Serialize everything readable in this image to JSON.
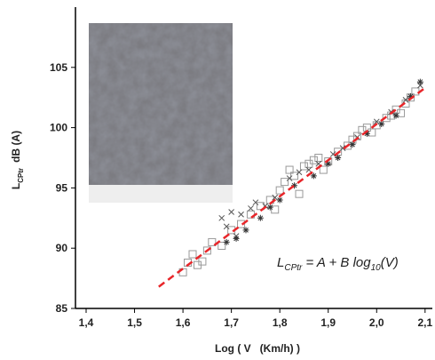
{
  "chart_data": {
    "type": "scatter",
    "x_label": "Log ( V   (Km/h) )",
    "y_label": {
      "main": "L",
      "sub": "CPtr",
      "unit": "dB (A)"
    },
    "equation": {
      "lhs": "L",
      "lhs_sub": "CPtr",
      "rhs": " = A + B log",
      "rhs_sub": "10",
      "tail": "(V)"
    },
    "xlim": [
      1.378,
      2.115
    ],
    "ylim": [
      85,
      110
    ],
    "xticks": [
      {
        "value": 1.4,
        "label": "1,4"
      },
      {
        "value": 1.5,
        "label": "1,5"
      },
      {
        "value": 1.6,
        "label": "1,6"
      },
      {
        "value": 1.7,
        "label": "1,7"
      },
      {
        "value": 1.8,
        "label": "1,8"
      },
      {
        "value": 1.9,
        "label": "1,9"
      },
      {
        "value": 2.0,
        "label": "2,0"
      },
      {
        "value": 2.1,
        "label": "2,1"
      }
    ],
    "yticks": [
      85,
      90,
      95,
      100,
      105
    ],
    "series": [
      {
        "marker": "square",
        "color": "#999999",
        "x": [
          1.6,
          1.61,
          1.62,
          1.63,
          1.65,
          1.66,
          1.68,
          1.7,
          1.72,
          1.74,
          1.76,
          1.78,
          1.8,
          1.81,
          1.82,
          1.83,
          1.85,
          1.86,
          1.87,
          1.88,
          1.9,
          1.92,
          1.94,
          1.95,
          1.96,
          1.97,
          1.98,
          2.0,
          2.02,
          2.03,
          2.04,
          2.05,
          2.06,
          2.07,
          2.08,
          1.84,
          1.79,
          1.89,
          1.99,
          1.64
        ],
        "values": [
          88.0,
          88.8,
          89.5,
          88.6,
          89.8,
          90.5,
          90.2,
          91.5,
          92.0,
          92.8,
          93.5,
          94.0,
          94.8,
          95.5,
          96.5,
          96.0,
          96.8,
          97.0,
          97.3,
          97.5,
          97.2,
          98.0,
          98.5,
          99.0,
          99.3,
          99.8,
          100.0,
          100.2,
          100.8,
          101.0,
          101.5,
          101.2,
          102.0,
          102.5,
          103.0,
          94.5,
          93.2,
          96.5,
          99.6,
          88.9
        ]
      },
      {
        "marker": "cross",
        "color": "#555555",
        "x": [
          1.68,
          1.69,
          1.7,
          1.71,
          1.72,
          1.74,
          1.75,
          1.77,
          1.79,
          1.82,
          1.84,
          1.86,
          1.88,
          1.91,
          1.93,
          1.96,
          2.0,
          2.03,
          2.06,
          2.09
        ],
        "values": [
          92.5,
          91.8,
          93.0,
          91.0,
          92.8,
          93.3,
          93.8,
          93.5,
          94.2,
          95.8,
          96.3,
          96.5,
          97.0,
          97.8,
          98.3,
          99.2,
          100.5,
          101.3,
          102.3,
          103.5
        ]
      },
      {
        "marker": "asterisk",
        "color": "#333333",
        "x": [
          1.69,
          1.71,
          1.73,
          1.76,
          1.78,
          1.8,
          1.83,
          1.87,
          1.9,
          1.92,
          1.95,
          1.98,
          2.01,
          2.04,
          2.07,
          2.09
        ],
        "values": [
          90.5,
          90.8,
          91.5,
          92.5,
          93.4,
          94.0,
          95.2,
          96.0,
          97.0,
          97.5,
          98.6,
          99.5,
          100.3,
          101.0,
          102.6,
          103.8
        ]
      },
      {
        "marker": "line",
        "color": "#e8262a",
        "dashed": true,
        "x": [
          1.55,
          2.1
        ],
        "values": [
          86.8,
          103.3
        ]
      }
    ]
  }
}
